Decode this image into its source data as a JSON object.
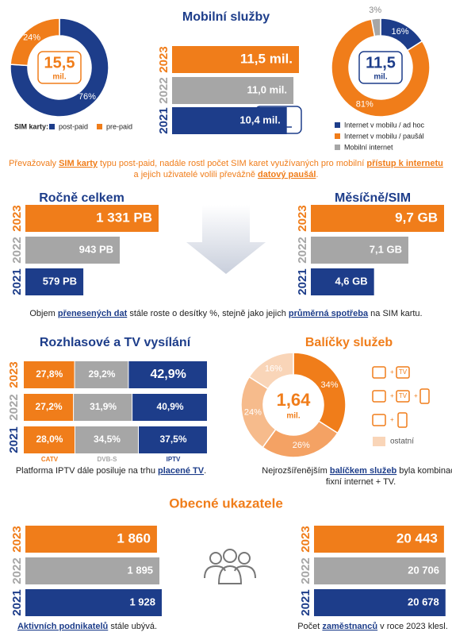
{
  "palette": [
    "#f07d1a",
    "#a6a6a6",
    "#1d3d8a"
  ],
  "mobile": {
    "title": "Mobilní služby",
    "sim": {
      "center_value": "15,5",
      "center_unit": "mil.",
      "legend_title": "SIM karty:",
      "segments": [
        {
          "name": "post-paid",
          "value": 76,
          "label": "76%",
          "color": "#1d3d8a"
        },
        {
          "name": "pre-paid",
          "value": 24,
          "label": "24%",
          "color": "#f07d1a"
        }
      ]
    },
    "sim_years": {
      "years": [
        "2023",
        "2022",
        "2021"
      ],
      "values": [
        11.5,
        11.0,
        10.4
      ],
      "labels": [
        "11,5 mil.",
        "11,0 mil.",
        "10,4 mil."
      ]
    },
    "internet": {
      "center_value": "11,5",
      "center_unit": "mil.",
      "segments": [
        {
          "name": "Internet v mobilu / ad hoc",
          "value": 16,
          "label": "16%",
          "color": "#1d3d8a"
        },
        {
          "name": "Internet v mobilu / paušál",
          "value": 81,
          "label": "81%",
          "color": "#f07d1a"
        },
        {
          "name": "Mobilní internet",
          "value": 3,
          "label": "3%",
          "color": "#a6a6a6"
        }
      ]
    },
    "note": [
      [
        "Převažovaly ",
        "SIM karty",
        " typu post-paid, nadále rostl počet SIM karet využívaných pro mobilní ",
        "přístup k internetu"
      ],
      [
        "a jejich uživatelé volili převážně ",
        "datový paušál",
        "."
      ]
    ]
  },
  "data": {
    "yearly": {
      "title": "Ročně celkem",
      "years": [
        "2023",
        "2022",
        "2021"
      ],
      "values": [
        1331,
        943,
        579
      ],
      "labels": [
        "1 331 PB",
        "943 PB",
        "579 PB"
      ]
    },
    "monthly": {
      "title": "Měsíčně/SIM",
      "years": [
        "2023",
        "2022",
        "2021"
      ],
      "values": [
        9.7,
        7.1,
        4.6
      ],
      "labels": [
        "9,7 GB",
        "7,1 GB",
        "4,6 GB"
      ]
    },
    "note": [
      [
        "Objem ",
        "přenesených dat",
        " stále roste o desítky %, stejně jako jejich ",
        "průměrná spotřeba",
        " na SIM kartu."
      ]
    ]
  },
  "broadcast": {
    "title": "Rozhlasové a TV vysílání",
    "years": [
      "2023",
      "2022",
      "2021"
    ],
    "series": [
      {
        "name": "CATV",
        "color": "#f07d1a",
        "values": [
          27.8,
          27.2,
          28.0
        ],
        "value_labels": [
          "27,8%",
          "27,2%",
          "28,0%"
        ]
      },
      {
        "name": "DVB-S",
        "color": "#a6a6a6",
        "values": [
          29.2,
          31.9,
          34.5
        ],
        "value_labels": [
          "29,2%",
          "31,9%",
          "34,5%"
        ]
      },
      {
        "name": "IPTV",
        "color": "#1d3d8a",
        "values": [
          42.9,
          40.9,
          37.5
        ],
        "value_labels": [
          "42,9%",
          "40,9%",
          "37,5%"
        ]
      }
    ],
    "note": [
      [
        "Platforma IPTV dále posiluje na trhu ",
        "placené TV",
        "."
      ]
    ]
  },
  "packages": {
    "title": "Balíčky služeb",
    "center_value": "1,64",
    "center_unit": "mil.",
    "tv_icon": "TV",
    "other_label": "ostatní",
    "segments": [
      {
        "value": 34,
        "label": "34%",
        "color": "#f07d1a"
      },
      {
        "value": 26,
        "label": "26%",
        "color": "#f4a264"
      },
      {
        "value": 24,
        "label": "24%",
        "color": "#f6bb8c"
      },
      {
        "value": 16,
        "label": "16%",
        "color": "#f9d5b8"
      }
    ],
    "note": [
      [
        "Nejrozšířenějším ",
        "balíčkem služeb",
        " byla kombinace"
      ],
      [
        "fixní internet + TV."
      ]
    ]
  },
  "general": {
    "title": "Obecné ukazatele",
    "businesses": {
      "years": [
        "2023",
        "2022",
        "2021"
      ],
      "values": [
        1860,
        1895,
        1928
      ],
      "labels": [
        "1 860",
        "1 895",
        "1 928"
      ],
      "note": [
        [
          "",
          "Aktivních podnikatelů",
          " stále ubývá."
        ]
      ]
    },
    "employees": {
      "years": [
        "2023",
        "2022",
        "2021"
      ],
      "values": [
        20443,
        20706,
        20678
      ],
      "labels": [
        "20 443",
        "20 706",
        "20 678"
      ],
      "note": [
        [
          "Počet ",
          "zaměstnanců",
          " v roce 2023 klesl."
        ]
      ]
    }
  }
}
